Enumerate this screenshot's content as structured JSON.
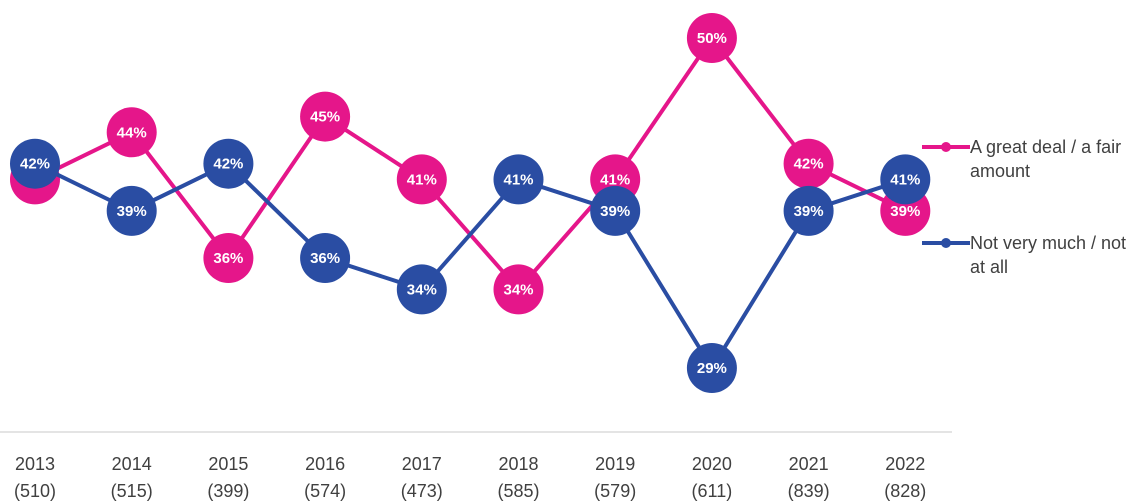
{
  "chart_data": {
    "type": "line",
    "categories": [
      "2013",
      "2014",
      "2015",
      "2016",
      "2017",
      "2018",
      "2019",
      "2020",
      "2021",
      "2022"
    ],
    "category_sublabels": [
      "(510)",
      "(515)",
      "(399)",
      "(574)",
      "(473)",
      "(585)",
      "(579)",
      "(611)",
      "(839)",
      "(828)"
    ],
    "series": [
      {
        "name": "A great deal / a fair amount",
        "color": "#e5168a",
        "values": [
          41,
          44,
          36,
          45,
          41,
          34,
          41,
          50,
          42,
          39
        ],
        "value_labels": [
          "41%",
          "44%",
          "36%",
          "45%",
          "41%",
          "34%",
          "41%",
          "50%",
          "42%",
          "39%"
        ]
      },
      {
        "name": "Not very much / not at all",
        "color": "#2a4da3",
        "values": [
          42,
          39,
          42,
          36,
          34,
          41,
          39,
          29,
          39,
          41
        ],
        "value_labels": [
          "42%",
          "39%",
          "42%",
          "36%",
          "34%",
          "41%",
          "39%",
          "29%",
          "39%",
          "41%"
        ]
      }
    ],
    "legend": "right"
  }
}
